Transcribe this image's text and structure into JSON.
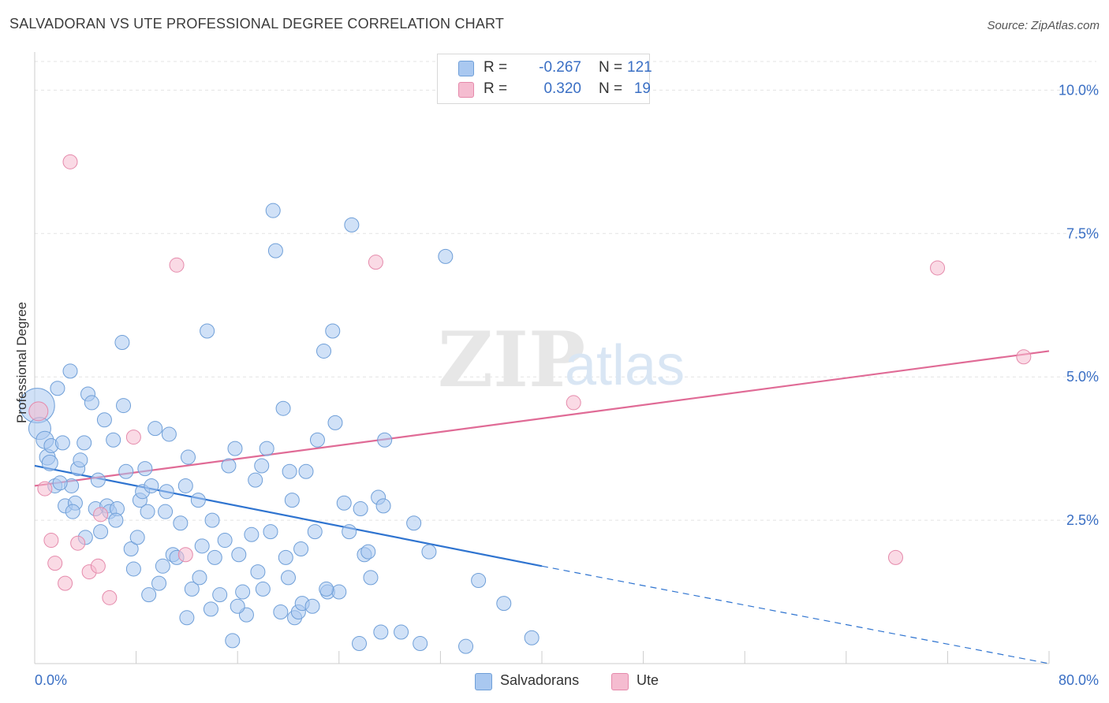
{
  "header": {
    "title": "SALVADORAN VS UTE PROFESSIONAL DEGREE CORRELATION CHART",
    "source": "Source: ZipAtlas.com"
  },
  "legend": {
    "rows": [
      {
        "r_label": "R =",
        "r_value": "-0.267",
        "n_label": "N =",
        "n_value": "121",
        "color": "#a9c8f0",
        "border": "#6f9fd8"
      },
      {
        "r_label": "R =",
        "r_value": "0.320",
        "n_label": "N =",
        "n_value": "19",
        "color": "#f5bcd0",
        "border": "#e58aab"
      }
    ],
    "bottom": [
      {
        "label": "Salvadorans",
        "color": "#a9c8f0",
        "border": "#6f9fd8"
      },
      {
        "label": "Ute",
        "color": "#f5bcd0",
        "border": "#e58aab"
      }
    ]
  },
  "chart_data": {
    "type": "scatter",
    "title": "SALVADORAN VS UTE PROFESSIONAL DEGREE CORRELATION CHART",
    "xlabel": "",
    "ylabel": "Professional Degree",
    "xlim": [
      0,
      80
    ],
    "ylim": [
      0,
      10.5
    ],
    "x_tick_labels": [
      "0.0%",
      "80.0%"
    ],
    "y_ticks": [
      2.5,
      5.0,
      7.5,
      10.0
    ],
    "y_tick_labels": [
      "2.5%",
      "5.0%",
      "7.5%",
      "10.0%"
    ],
    "grid": true,
    "legend_position": "top-center",
    "watermark": "ZIPatlas",
    "series": [
      {
        "name": "Salvadorans",
        "color": "#a9c8f0",
        "stroke": "#6f9fd8",
        "points": [
          [
            0.2,
            4.5,
            22
          ],
          [
            0.4,
            4.1,
            14
          ],
          [
            0.8,
            3.9,
            11
          ],
          [
            1.0,
            3.6,
            10
          ],
          [
            1.3,
            3.8,
            9
          ],
          [
            1.2,
            3.5,
            10
          ],
          [
            1.8,
            4.8,
            9
          ],
          [
            2.8,
            5.1,
            9
          ],
          [
            1.6,
            3.1,
            9
          ],
          [
            2.2,
            3.85,
            9
          ],
          [
            2.4,
            2.75,
            9
          ],
          [
            2.9,
            3.1,
            9
          ],
          [
            3.2,
            2.8,
            9
          ],
          [
            3.4,
            3.4,
            9
          ],
          [
            3.6,
            3.55,
            9
          ],
          [
            3.9,
            3.85,
            9
          ],
          [
            4.2,
            4.7,
            9
          ],
          [
            4.5,
            4.55,
            9
          ],
          [
            4.8,
            2.7,
            9
          ],
          [
            5.0,
            3.2,
            9
          ],
          [
            5.2,
            2.3,
            9
          ],
          [
            5.5,
            4.25,
            9
          ],
          [
            5.7,
            2.75,
            9
          ],
          [
            5.9,
            2.65,
            9
          ],
          [
            6.2,
            3.9,
            9
          ],
          [
            6.5,
            2.7,
            9
          ],
          [
            6.4,
            2.5,
            9
          ],
          [
            6.9,
            5.6,
            9
          ],
          [
            7.0,
            4.5,
            9
          ],
          [
            7.2,
            3.35,
            9
          ],
          [
            7.6,
            2.0,
            9
          ],
          [
            7.8,
            1.65,
            9
          ],
          [
            8.1,
            2.2,
            9
          ],
          [
            8.3,
            2.85,
            9
          ],
          [
            8.5,
            3.0,
            9
          ],
          [
            8.7,
            3.4,
            9
          ],
          [
            8.9,
            2.65,
            9
          ],
          [
            9.2,
            3.1,
            9
          ],
          [
            9.5,
            4.1,
            9
          ],
          [
            9.8,
            1.4,
            9
          ],
          [
            10.1,
            1.7,
            9
          ],
          [
            10.3,
            2.65,
            9
          ],
          [
            10.4,
            3.0,
            9
          ],
          [
            10.6,
            4.0,
            9
          ],
          [
            10.9,
            1.9,
            9
          ],
          [
            11.2,
            1.85,
            9
          ],
          [
            11.5,
            2.45,
            9
          ],
          [
            11.9,
            3.1,
            9
          ],
          [
            12.1,
            3.6,
            9
          ],
          [
            12.4,
            1.3,
            9
          ],
          [
            12.9,
            2.85,
            9
          ],
          [
            13.2,
            2.05,
            9
          ],
          [
            13.6,
            5.8,
            9
          ],
          [
            13.9,
            0.95,
            9
          ],
          [
            14.2,
            1.85,
            9
          ],
          [
            14.6,
            1.2,
            9
          ],
          [
            15.0,
            2.15,
            9
          ],
          [
            15.3,
            3.45,
            9
          ],
          [
            15.6,
            0.4,
            9
          ],
          [
            15.8,
            3.75,
            9
          ],
          [
            16.1,
            1.9,
            9
          ],
          [
            16.4,
            1.25,
            9
          ],
          [
            16.7,
            0.85,
            9
          ],
          [
            17.1,
            2.25,
            9
          ],
          [
            17.4,
            3.2,
            9
          ],
          [
            17.6,
            1.6,
            9
          ],
          [
            17.9,
            3.45,
            9
          ],
          [
            18.3,
            3.75,
            9
          ],
          [
            18.6,
            2.3,
            9
          ],
          [
            18.8,
            7.9,
            9
          ],
          [
            19.0,
            7.2,
            9
          ],
          [
            19.4,
            0.9,
            9
          ],
          [
            19.6,
            4.45,
            9
          ],
          [
            19.8,
            1.85,
            9
          ],
          [
            20.1,
            3.35,
            9
          ],
          [
            20.3,
            2.85,
            9
          ],
          [
            20.5,
            0.8,
            9
          ],
          [
            20.8,
            0.9,
            9
          ],
          [
            21.1,
            1.05,
            9
          ],
          [
            21.4,
            3.35,
            9
          ],
          [
            21.9,
            1.0,
            9
          ],
          [
            22.1,
            2.3,
            9
          ],
          [
            22.3,
            3.9,
            9
          ],
          [
            22.8,
            5.45,
            9
          ],
          [
            23.1,
            1.25,
            9
          ],
          [
            23.5,
            5.8,
            9
          ],
          [
            23.7,
            4.2,
            9
          ],
          [
            24.0,
            1.25,
            9
          ],
          [
            24.4,
            2.8,
            9
          ],
          [
            25.0,
            7.65,
            9
          ],
          [
            25.6,
            0.35,
            9
          ],
          [
            25.7,
            2.7,
            9
          ],
          [
            26.0,
            1.9,
            9
          ],
          [
            26.3,
            1.95,
            9
          ],
          [
            27.3,
            0.55,
            9
          ],
          [
            27.1,
            2.9,
            9
          ],
          [
            27.5,
            2.75,
            9
          ],
          [
            27.6,
            3.9,
            9
          ],
          [
            28.9,
            0.55,
            9
          ],
          [
            29.9,
            2.45,
            9
          ],
          [
            30.4,
            0.35,
            9
          ],
          [
            31.1,
            1.95,
            9
          ],
          [
            32.4,
            7.1,
            9
          ],
          [
            34.0,
            0.3,
            9
          ],
          [
            35.0,
            1.45,
            9
          ],
          [
            37.0,
            1.05,
            9
          ],
          [
            39.2,
            0.45,
            9
          ],
          [
            2.0,
            3.15,
            9
          ],
          [
            3.0,
            2.65,
            9
          ],
          [
            4.0,
            2.2,
            9
          ],
          [
            9.0,
            1.2,
            9
          ],
          [
            12.0,
            0.8,
            9
          ],
          [
            14.0,
            2.5,
            9
          ],
          [
            16.0,
            1.0,
            9
          ],
          [
            18.0,
            1.3,
            9
          ],
          [
            20.0,
            1.5,
            9
          ],
          [
            21.0,
            2.0,
            9
          ],
          [
            23.0,
            1.3,
            9
          ],
          [
            24.8,
            2.3,
            9
          ],
          [
            26.5,
            1.5,
            9
          ],
          [
            13.0,
            1.5,
            9
          ]
        ],
        "trend": {
          "x0": 0,
          "y0": 3.45,
          "x1": 40,
          "y1": 1.7,
          "dash_to_x": 80,
          "dash_to_y": 0.0
        }
      },
      {
        "name": "Ute",
        "color": "#f5bcd0",
        "stroke": "#e58aab",
        "points": [
          [
            0.3,
            4.4,
            12
          ],
          [
            0.8,
            3.05,
            9
          ],
          [
            1.3,
            2.15,
            9
          ],
          [
            1.6,
            1.75,
            9
          ],
          [
            2.4,
            1.4,
            9
          ],
          [
            2.8,
            8.75,
            9
          ],
          [
            3.4,
            2.1,
            9
          ],
          [
            4.3,
            1.6,
            9
          ],
          [
            5.0,
            1.7,
            9
          ],
          [
            5.2,
            2.6,
            9
          ],
          [
            5.9,
            1.15,
            9
          ],
          [
            7.8,
            3.95,
            9
          ],
          [
            11.2,
            6.95,
            9
          ],
          [
            11.9,
            1.9,
            9
          ],
          [
            26.9,
            7.0,
            9
          ],
          [
            42.5,
            4.55,
            9
          ],
          [
            67.9,
            1.85,
            9
          ],
          [
            71.2,
            6.9,
            9
          ],
          [
            78.0,
            5.35,
            9
          ]
        ],
        "trend": {
          "x0": 0,
          "y0": 3.1,
          "x1": 80,
          "y1": 5.45
        }
      }
    ]
  }
}
